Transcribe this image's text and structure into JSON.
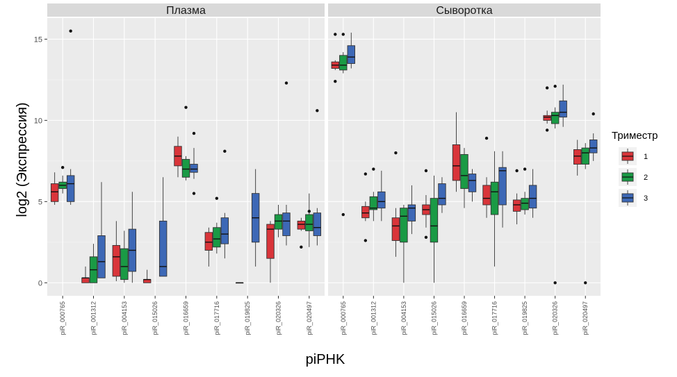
{
  "chart_data": {
    "type": "boxplot",
    "xlabel": "piPHK",
    "ylabel": "log2 (Экспрессия)",
    "yticks": [
      0,
      5,
      10,
      15
    ],
    "ylim": [
      -0.8,
      16.3
    ],
    "legend": {
      "title": "Триместр",
      "placement": "right",
      "items": [
        {
          "label": "1",
          "color": "#d9353a"
        },
        {
          "label": "2",
          "color": "#1a9a45"
        },
        {
          "label": "3",
          "color": "#3d68b6"
        }
      ]
    },
    "categories": [
      "piR_000765",
      "piR_001312",
      "piR_004153",
      "piR_015026",
      "piR_016659",
      "piR_017716",
      "piR_019825",
      "piR_020326",
      "piR_020497"
    ],
    "panels": [
      {
        "title": "Плазма",
        "boxes": [
          [
            {
              "min": 4.8,
              "q1": 5.0,
              "median": 5.6,
              "q3": 6.1,
              "max": 6.8,
              "outliers": []
            },
            {
              "min": 5.5,
              "q1": 5.8,
              "median": 6.0,
              "q3": 6.2,
              "max": 6.6,
              "outliers": [
                7.1
              ]
            },
            {
              "min": 4.8,
              "q1": 5.0,
              "median": 6.1,
              "q3": 6.6,
              "max": 7.0,
              "outliers": [
                15.5
              ]
            }
          ],
          [
            {
              "min": 0.0,
              "q1": 0.0,
              "median": 0.3,
              "q3": 0.3,
              "max": 1.0,
              "outliers": []
            },
            {
              "min": 0.0,
              "q1": 0.0,
              "median": 0.8,
              "q3": 1.6,
              "max": 2.4,
              "outliers": []
            },
            {
              "min": 0.3,
              "q1": 0.3,
              "median": 1.3,
              "q3": 2.9,
              "max": 6.2,
              "outliers": []
            }
          ],
          [
            {
              "min": 0.1,
              "q1": 0.4,
              "median": 1.6,
              "q3": 2.3,
              "max": 3.8,
              "outliers": []
            },
            {
              "min": 0.0,
              "q1": 0.2,
              "median": 1.0,
              "q3": 2.1,
              "max": 3.2,
              "outliers": []
            },
            {
              "min": 0.0,
              "q1": 0.7,
              "median": 2.0,
              "q3": 3.3,
              "max": 5.6,
              "outliers": []
            }
          ],
          [
            {
              "min": 0.0,
              "q1": 0.0,
              "median": 0.2,
              "q3": 0.2,
              "max": 0.8,
              "outliers": []
            },
            null,
            {
              "min": 0.4,
              "q1": 0.4,
              "median": 1.0,
              "q3": 3.8,
              "max": 6.5,
              "outliers": []
            }
          ],
          [
            {
              "min": 6.5,
              "q1": 7.2,
              "median": 7.8,
              "q3": 8.4,
              "max": 9.0,
              "outliers": []
            },
            {
              "min": 6.3,
              "q1": 6.5,
              "median": 7.0,
              "q3": 7.6,
              "max": 7.8,
              "outliers": [
                10.8
              ]
            },
            {
              "min": 6.4,
              "q1": 6.8,
              "median": 7.0,
              "q3": 7.3,
              "max": 8.3,
              "outliers": [
                9.2,
                5.5
              ]
            }
          ],
          [
            {
              "min": 1.0,
              "q1": 2.0,
              "median": 2.5,
              "q3": 3.1,
              "max": 3.4,
              "outliers": []
            },
            {
              "min": 1.8,
              "q1": 2.2,
              "median": 2.7,
              "q3": 3.4,
              "max": 3.7,
              "outliers": [
                5.2
              ]
            },
            {
              "min": 1.5,
              "q1": 2.4,
              "median": 3.0,
              "q3": 4.0,
              "max": 4.3,
              "outliers": [
                8.1
              ]
            }
          ],
          [
            {
              "min": 0.0,
              "q1": 0.0,
              "median": 0.0,
              "q3": 0.0,
              "max": 0.0,
              "outliers": []
            },
            null,
            {
              "min": 1.0,
              "q1": 2.5,
              "median": 4.0,
              "q3": 5.5,
              "max": 7.0,
              "outliers": []
            }
          ],
          [
            {
              "min": 0.0,
              "q1": 1.5,
              "median": 3.3,
              "q3": 3.6,
              "max": 3.8,
              "outliers": []
            },
            {
              "min": 2.8,
              "q1": 3.3,
              "median": 3.8,
              "q3": 4.2,
              "max": 4.8,
              "outliers": []
            },
            {
              "min": 2.3,
              "q1": 2.9,
              "median": 3.8,
              "q3": 4.3,
              "max": 4.8,
              "outliers": [
                12.3
              ]
            }
          ],
          [
            {
              "min": 3.2,
              "q1": 3.3,
              "median": 3.6,
              "q3": 3.8,
              "max": 4.0,
              "outliers": [
                2.2
              ]
            },
            {
              "min": 2.2,
              "q1": 3.2,
              "median": 3.6,
              "q3": 4.2,
              "max": 5.5,
              "outliers": [
                4.4
              ]
            },
            {
              "min": 2.3,
              "q1": 2.9,
              "median": 3.4,
              "q3": 4.3,
              "max": 4.6,
              "outliers": [
                10.6
              ]
            }
          ]
        ]
      },
      {
        "title": "Сыворотка",
        "boxes": [
          [
            {
              "min": 13.1,
              "q1": 13.2,
              "median": 13.4,
              "q3": 13.6,
              "max": 13.7,
              "outliers": [
                12.4,
                15.3
              ]
            },
            {
              "min": 12.9,
              "q1": 13.1,
              "median": 13.4,
              "q3": 14.0,
              "max": 14.2,
              "outliers": [
                15.3,
                4.2
              ]
            },
            {
              "min": 13.2,
              "q1": 13.5,
              "median": 13.9,
              "q3": 14.6,
              "max": 15.4,
              "outliers": []
            }
          ],
          [
            {
              "min": 3.8,
              "q1": 4.0,
              "median": 4.3,
              "q3": 4.7,
              "max": 5.0,
              "outliers": [
                6.7,
                2.6
              ]
            },
            {
              "min": 3.8,
              "q1": 4.5,
              "median": 4.6,
              "q3": 5.3,
              "max": 5.6,
              "outliers": [
                7.0
              ]
            },
            {
              "min": 3.8,
              "q1": 4.6,
              "median": 5.0,
              "q3": 5.6,
              "max": 6.9,
              "outliers": []
            }
          ],
          [
            {
              "min": 1.6,
              "q1": 2.6,
              "median": 3.5,
              "q3": 4.0,
              "max": 4.6,
              "outliers": [
                8.0
              ]
            },
            {
              "min": 0.0,
              "q1": 2.5,
              "median": 4.1,
              "q3": 4.6,
              "max": 4.8,
              "outliers": []
            },
            {
              "min": 3.0,
              "q1": 3.8,
              "median": 4.6,
              "q3": 4.8,
              "max": 6.0,
              "outliers": []
            }
          ],
          [
            {
              "min": 3.4,
              "q1": 4.2,
              "median": 4.5,
              "q3": 4.8,
              "max": 5.4,
              "outliers": [
                6.9,
                2.8
              ]
            },
            {
              "min": 0.0,
              "q1": 2.5,
              "median": 3.5,
              "q3": 5.2,
              "max": 6.6,
              "outliers": []
            },
            {
              "min": 4.3,
              "q1": 4.8,
              "median": 5.2,
              "q3": 6.1,
              "max": 6.5,
              "outliers": []
            }
          ],
          [
            {
              "min": 5.6,
              "q1": 6.3,
              "median": 7.2,
              "q3": 8.5,
              "max": 10.5,
              "outliers": []
            },
            {
              "min": 4.6,
              "q1": 5.8,
              "median": 6.6,
              "q3": 7.9,
              "max": 8.3,
              "outliers": []
            },
            {
              "min": 5.0,
              "q1": 5.6,
              "median": 6.3,
              "q3": 6.7,
              "max": 7.0,
              "outliers": []
            }
          ],
          [
            {
              "min": 4.0,
              "q1": 4.8,
              "median": 5.2,
              "q3": 6.0,
              "max": 6.5,
              "outliers": [
                8.9
              ]
            },
            {
              "min": 1.0,
              "q1": 4.2,
              "median": 5.6,
              "q3": 6.2,
              "max": 8.1,
              "outliers": []
            },
            {
              "min": 3.4,
              "q1": 4.8,
              "median": 6.9,
              "q3": 7.1,
              "max": 8.1,
              "outliers": []
            }
          ],
          [
            {
              "min": 3.6,
              "q1": 4.4,
              "median": 4.8,
              "q3": 5.1,
              "max": 5.5,
              "outliers": [
                6.9
              ]
            },
            {
              "min": 4.2,
              "q1": 4.5,
              "median": 4.9,
              "q3": 5.2,
              "max": 5.6,
              "outliers": [
                7.0
              ]
            },
            {
              "min": 4.0,
              "q1": 4.6,
              "median": 5.2,
              "q3": 6.0,
              "max": 7.0,
              "outliers": []
            }
          ],
          [
            {
              "min": 9.8,
              "q1": 10.0,
              "median": 10.2,
              "q3": 10.3,
              "max": 10.6,
              "outliers": [
                12.0,
                9.4
              ]
            },
            {
              "min": 9.5,
              "q1": 9.8,
              "median": 10.3,
              "q3": 10.5,
              "max": 10.8,
              "outliers": [
                12.1,
                0.0
              ]
            },
            {
              "min": 9.6,
              "q1": 10.2,
              "median": 10.5,
              "q3": 11.2,
              "max": 12.2,
              "outliers": []
            }
          ],
          [
            {
              "min": 6.6,
              "q1": 7.3,
              "median": 7.8,
              "q3": 8.2,
              "max": 8.8,
              "outliers": []
            },
            {
              "min": 7.0,
              "q1": 7.3,
              "median": 8.0,
              "q3": 8.3,
              "max": 8.6,
              "outliers": [
                0.0
              ]
            },
            {
              "min": 7.5,
              "q1": 8.0,
              "median": 8.3,
              "q3": 8.8,
              "max": 9.2,
              "outliers": [
                10.4
              ]
            }
          ]
        ]
      }
    ]
  }
}
